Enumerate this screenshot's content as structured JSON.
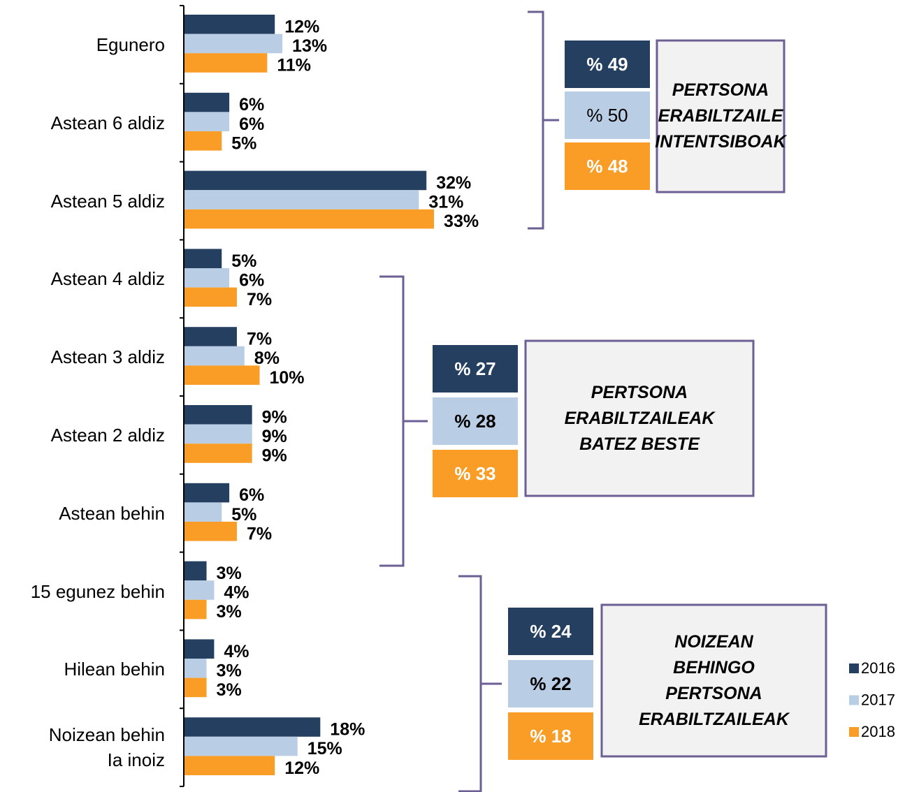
{
  "chart_data": {
    "type": "bar",
    "orientation": "horizontal",
    "categories": [
      "Egunero",
      "Astean 6 aldiz",
      "Astean 5 aldiz",
      "Astean 4 aldiz",
      "Astean 3 aldiz",
      "Astean 2 aldiz",
      "Astean behin",
      "15 egunez behin",
      "Hilean behin",
      "Noizean behin\nIa inoiz"
    ],
    "series": [
      {
        "name": "2016",
        "color": "#243f60",
        "values": [
          12,
          6,
          32,
          5,
          7,
          9,
          6,
          3,
          4,
          18
        ],
        "value_labels": [
          "12%",
          "6%",
          "32%",
          "5%",
          "7%",
          "9%",
          "6%",
          "3%",
          "4%",
          "18%"
        ]
      },
      {
        "name": "2017",
        "color": "#b9cde5",
        "values": [
          13,
          6,
          31,
          6,
          8,
          9,
          5,
          4,
          3,
          15
        ],
        "value_labels": [
          "13%",
          "6%",
          "31%",
          "6%",
          "8%",
          "9%",
          "5%",
          "4%",
          "3%",
          "15%"
        ]
      },
      {
        "name": "2018",
        "color": "#f99d26",
        "values": [
          11,
          5,
          33,
          7,
          10,
          9,
          7,
          3,
          3,
          12
        ],
        "value_labels": [
          "11%",
          "5%",
          "33%",
          "7%",
          "10%",
          "9%",
          "7%",
          "3%",
          "3%",
          "12%"
        ]
      }
    ],
    "xlim": [
      0,
      40
    ],
    "groups": [
      {
        "label": "PERTSONA\nERABILTZAILE\nINTENTSIBOAK",
        "values": [
          49,
          50,
          48
        ],
        "value_labels": [
          "% 49",
          "% 50",
          "% 48"
        ]
      },
      {
        "label": "PERTSONA\nERABILTZAILEAK\nBATEZ BESTE",
        "values": [
          27,
          28,
          33
        ],
        "value_labels": [
          "% 27",
          "% 28",
          "% 33"
        ]
      },
      {
        "label": "NOIZEAN\nBEHINGO\nPERTSONA\nERABILTZAILEAK",
        "values": [
          24,
          22,
          18
        ],
        "value_labels": [
          "% 24",
          "% 22",
          "% 18"
        ]
      }
    ],
    "legend": "right"
  }
}
